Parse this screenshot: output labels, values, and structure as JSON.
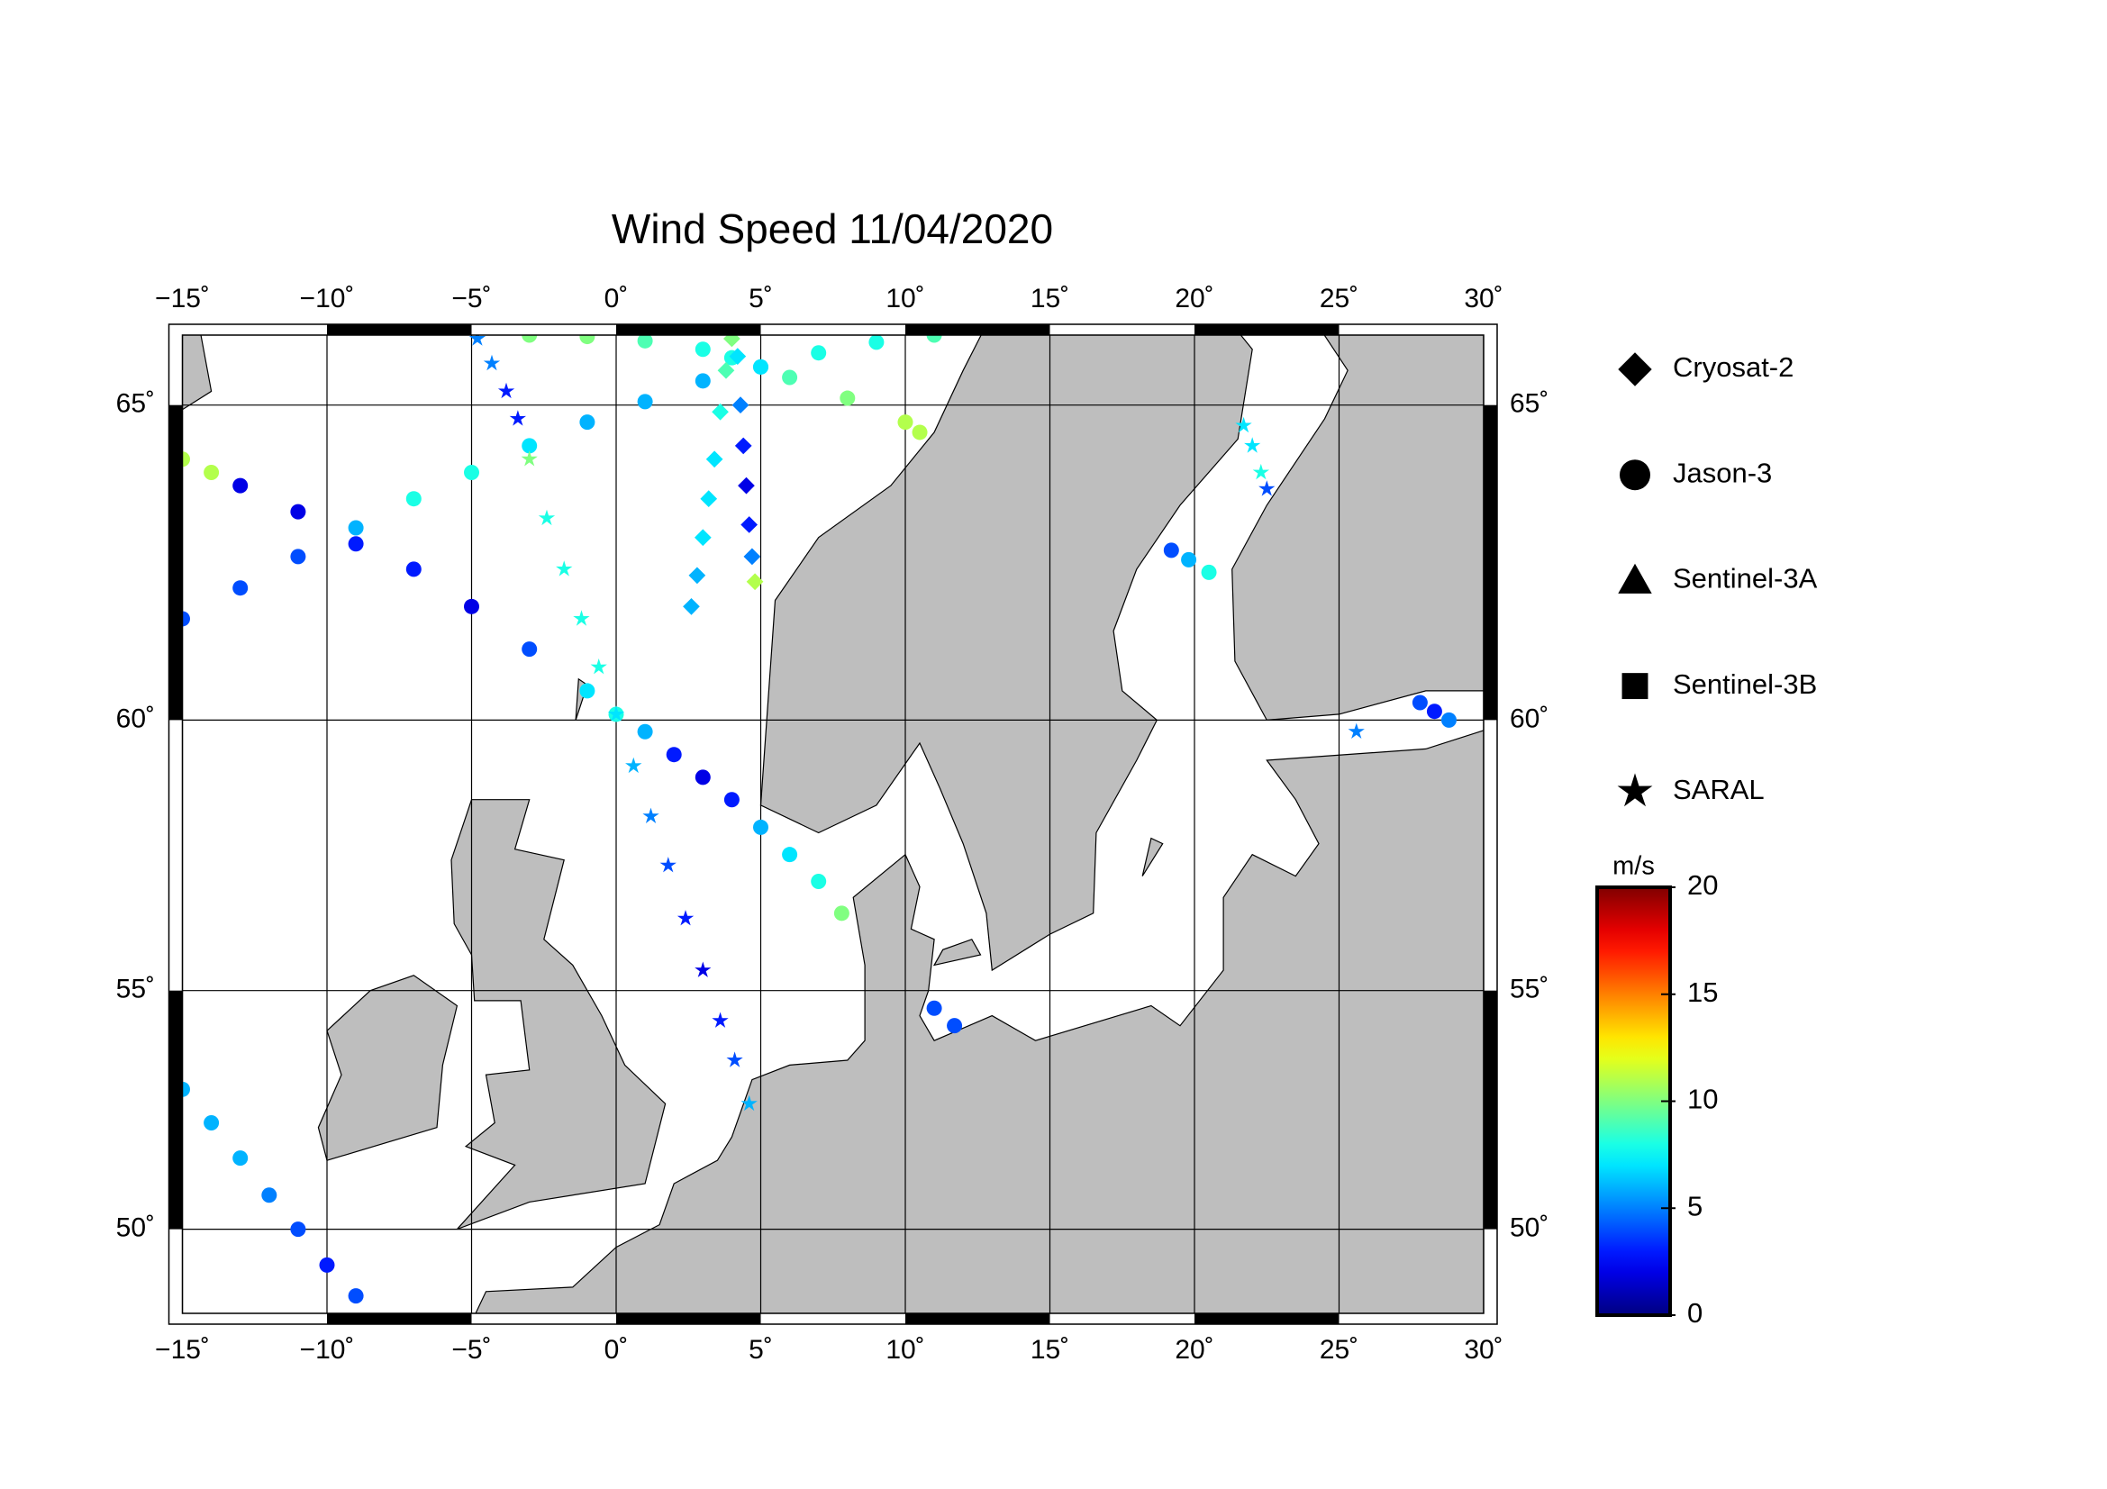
{
  "map": {
    "title": "Wind Speed 11/04/2020",
    "xlim": [
      -15,
      30
    ],
    "ylim": [
      48.1,
      66.0
    ],
    "projection": "mercator",
    "grid": true,
    "xticks": [
      {
        "value": -15,
        "label": "−15˚"
      },
      {
        "value": -10,
        "label": "−10˚"
      },
      {
        "value": -5,
        "label": "−5˚"
      },
      {
        "value": 0,
        "label": "0˚"
      },
      {
        "value": 5,
        "label": "5˚"
      },
      {
        "value": 10,
        "label": "10˚"
      },
      {
        "value": 15,
        "label": "15˚"
      },
      {
        "value": 20,
        "label": "20˚"
      },
      {
        "value": 25,
        "label": "25˚"
      },
      {
        "value": 30,
        "label": "30˚"
      }
    ],
    "yticks": [
      {
        "value": 50,
        "label": "50˚"
      },
      {
        "value": 55,
        "label": "55˚"
      },
      {
        "value": 60,
        "label": "60˚"
      },
      {
        "value": 65,
        "label": "65˚"
      }
    ],
    "satellites": [
      {
        "name": "Cryosat-2",
        "marker": "diamond"
      },
      {
        "name": "Jason-3",
        "marker": "circle"
      },
      {
        "name": "Sentinel-3A",
        "marker": "triangle"
      },
      {
        "name": "Sentinel-3B",
        "marker": "square"
      },
      {
        "name": "SARAL",
        "marker": "star"
      }
    ],
    "colorbar": {
      "unit": "m/s",
      "clim": [
        0,
        20
      ],
      "ticks": [
        0,
        5,
        10,
        15,
        20
      ],
      "colormap": "jet"
    },
    "tracks": [
      {
        "satellite": "Jason-3",
        "lon": [
          -15,
          -13,
          -11,
          -9,
          -7,
          -5,
          -3,
          -1,
          1,
          3,
          5,
          7,
          9,
          11
        ],
        "lat": [
          61.7,
          62.2,
          62.7,
          63.15,
          63.6,
          64.0,
          64.4,
          64.75,
          65.05,
          65.35,
          65.55,
          65.75,
          65.9,
          66.0
        ],
        "values": [
          4,
          4,
          4,
          6,
          8,
          8,
          7,
          6,
          6,
          6,
          7,
          8,
          8,
          9
        ]
      },
      {
        "satellite": "Jason-3",
        "lon": [
          -15,
          -14,
          -13,
          -11,
          -9,
          -7,
          -5,
          -3,
          -1,
          0,
          1,
          2,
          3,
          4,
          5,
          6,
          7,
          7.8
        ],
        "lat": [
          64.2,
          64.0,
          63.8,
          63.4,
          62.9,
          62.5,
          61.9,
          61.2,
          60.5,
          60.1,
          59.8,
          59.4,
          59.0,
          58.6,
          58.1,
          57.6,
          57.1,
          56.5
        ],
        "values": [
          11,
          11,
          2,
          2,
          3,
          3,
          2,
          4,
          7,
          8,
          6,
          3,
          2,
          3,
          6,
          7,
          8,
          10
        ]
      },
      {
        "satellite": "Jason-3",
        "lon": [
          -3,
          -1,
          1,
          3,
          4,
          5,
          6,
          8,
          10,
          10.5
        ],
        "lat": [
          66.0,
          65.98,
          65.92,
          65.8,
          65.68,
          65.55,
          65.4,
          65.1,
          64.75,
          64.6
        ],
        "values": [
          10,
          10,
          9,
          8,
          8,
          7,
          9,
          10,
          11,
          11
        ]
      },
      {
        "satellite": "Jason-3",
        "lon": [
          -15,
          -14,
          -13,
          -12,
          -11,
          -10,
          -9
        ],
        "lat": [
          53.0,
          52.3,
          51.55,
          50.75,
          50.0,
          49.2,
          48.5
        ],
        "values": [
          6,
          6,
          6,
          5,
          4,
          3,
          4
        ]
      },
      {
        "satellite": "Jason-3",
        "lon": [
          19.2,
          19.8,
          20.5
        ],
        "lat": [
          62.8,
          62.65,
          62.45
        ],
        "values": [
          4,
          6,
          8
        ]
      },
      {
        "satellite": "Jason-3",
        "lon": [
          27.8,
          28.3,
          28.8
        ],
        "lat": [
          60.3,
          60.15,
          60.0
        ],
        "values": [
          4,
          3,
          5
        ]
      },
      {
        "satellite": "Jason-3",
        "lon": [
          11,
          11.7
        ],
        "lat": [
          54.65,
          54.3
        ],
        "values": [
          4,
          4
        ]
      },
      {
        "satellite": "Cryosat-2",
        "lon": [
          4,
          3.8,
          3.6,
          3.4,
          3.2,
          3.0,
          2.8,
          2.6
        ],
        "lat": [
          65.95,
          65.5,
          64.9,
          64.2,
          63.6,
          63.0,
          62.4,
          61.9
        ],
        "values": [
          10,
          9,
          8,
          7,
          7,
          7,
          6,
          6
        ]
      },
      {
        "satellite": "Cryosat-2",
        "lon": [
          4.2,
          4.3,
          4.4,
          4.5,
          4.6,
          4.7,
          4.8
        ],
        "lat": [
          65.7,
          65.0,
          64.4,
          63.8,
          63.2,
          62.7,
          62.3
        ],
        "values": [
          7,
          5,
          3,
          2,
          3,
          5,
          11
        ]
      },
      {
        "satellite": "SARAL",
        "lon": [
          -4.8,
          -4.3,
          -3.8,
          -3.4,
          -3.0,
          -2.4,
          -1.8,
          -1.2,
          -0.6,
          0,
          0.6,
          1.2,
          1.8,
          2.4,
          3.0,
          3.6,
          4.1,
          4.6
        ],
        "lat": [
          65.95,
          65.6,
          65.2,
          64.8,
          64.2,
          63.3,
          62.5,
          61.7,
          60.9,
          60.1,
          59.2,
          58.3,
          57.4,
          56.4,
          55.4,
          54.4,
          53.6,
          52.7
        ],
        "values": [
          5,
          5,
          3,
          3,
          10,
          8,
          8,
          8,
          8,
          7,
          6,
          5,
          4,
          3,
          2,
          3,
          4,
          6
        ]
      },
      {
        "satellite": "SARAL",
        "lon": [
          21.7,
          22,
          22.3,
          22.5
        ],
        "lat": [
          64.7,
          64.4,
          64.0,
          63.75
        ],
        "values": [
          7,
          7,
          8,
          4
        ]
      },
      {
        "satellite": "SARAL",
        "lon": [
          25.6
        ],
        "lat": [
          59.8
        ],
        "values": [
          5
        ]
      }
    ]
  }
}
